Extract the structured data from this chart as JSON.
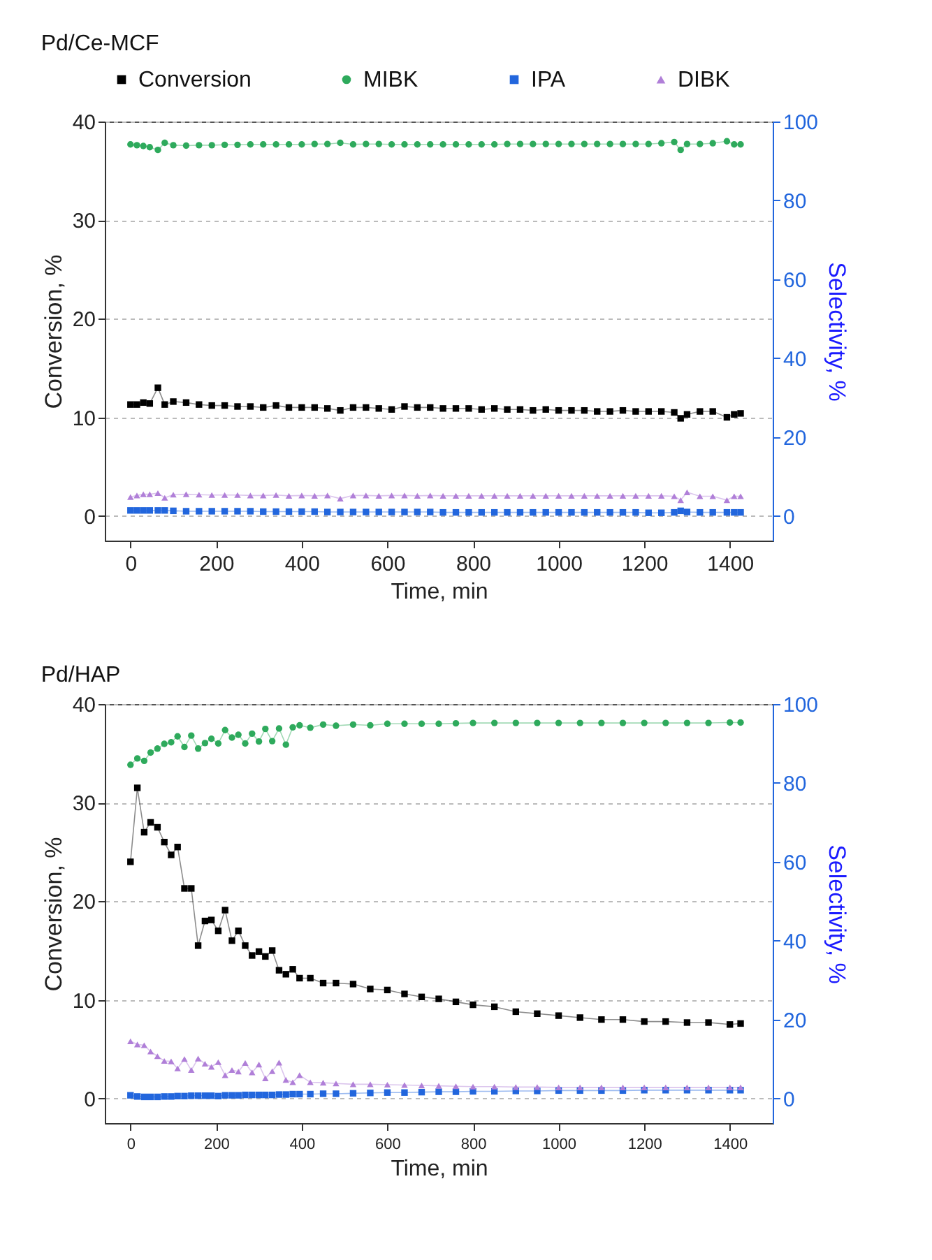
{
  "chart_data": [
    {
      "type": "line",
      "title": "Pd/Ce-MCF",
      "xlabel": "Time, min",
      "ylabel": "Conversion, %",
      "y2label": "Selectivity, %",
      "xlim": [
        -60,
        1500
      ],
      "xticks": [
        0,
        200,
        400,
        600,
        800,
        1000,
        1200,
        1400
      ],
      "ylim": [
        -2.5,
        40
      ],
      "yticks": [
        0,
        10,
        20,
        30,
        40
      ],
      "y2lim": [
        -6.25,
        100
      ],
      "y2ticks": [
        0,
        20,
        40,
        60,
        80,
        100
      ],
      "grid": "y",
      "legend": "top",
      "line_style": "solid",
      "x": [
        0,
        15,
        30,
        45,
        64,
        80,
        100,
        130,
        160,
        190,
        220,
        250,
        280,
        310,
        340,
        370,
        400,
        430,
        460,
        490,
        520,
        550,
        580,
        610,
        640,
        670,
        700,
        730,
        760,
        790,
        820,
        850,
        880,
        910,
        940,
        970,
        1000,
        1030,
        1060,
        1090,
        1120,
        1150,
        1180,
        1210,
        1240,
        1270,
        1285,
        1300,
        1330,
        1360,
        1393,
        1410,
        1425
      ],
      "series": [
        {
          "name": "Conversion",
          "color": "#000000",
          "marker": "square",
          "values": [
            11.3,
            11.3,
            11.5,
            11.4,
            13.0,
            11.3,
            11.6,
            11.5,
            11.3,
            11.2,
            11.2,
            11.1,
            11.1,
            11.0,
            11.2,
            11.0,
            11.0,
            11.0,
            10.9,
            10.7,
            11.0,
            11.0,
            10.9,
            10.8,
            11.1,
            11.0,
            11.0,
            10.9,
            10.9,
            10.9,
            10.8,
            10.9,
            10.8,
            10.8,
            10.7,
            10.8,
            10.7,
            10.7,
            10.7,
            10.6,
            10.6,
            10.7,
            10.6,
            10.6,
            10.6,
            10.5,
            9.9,
            10.3,
            10.6,
            10.6,
            10.0,
            10.3,
            10.4
          ]
        },
        {
          "name": "MIBK",
          "color": "#2eaa5c",
          "marker": "circle",
          "axis": "y2",
          "values": [
            94.2,
            94.0,
            93.8,
            93.5,
            92.8,
            94.6,
            94.0,
            93.9,
            94.0,
            94.0,
            94.1,
            94.1,
            94.2,
            94.2,
            94.2,
            94.2,
            94.2,
            94.3,
            94.3,
            94.6,
            94.2,
            94.3,
            94.3,
            94.2,
            94.2,
            94.2,
            94.2,
            94.2,
            94.2,
            94.2,
            94.2,
            94.2,
            94.3,
            94.3,
            94.3,
            94.3,
            94.3,
            94.3,
            94.3,
            94.3,
            94.3,
            94.3,
            94.3,
            94.3,
            94.5,
            94.8,
            92.8,
            94.3,
            94.3,
            94.5,
            95.0,
            94.2,
            94.2
          ]
        },
        {
          "name": "IPA",
          "color": "#2266dd",
          "marker": "square",
          "axis": "y2",
          "values": [
            1.4,
            1.4,
            1.4,
            1.4,
            1.4,
            1.4,
            1.3,
            1.2,
            1.2,
            1.2,
            1.2,
            1.2,
            1.2,
            1.1,
            1.1,
            1.1,
            1.1,
            1.1,
            1.0,
            1.0,
            1.0,
            1.0,
            1.0,
            1.0,
            1.0,
            1.0,
            1.0,
            0.9,
            0.9,
            0.9,
            0.9,
            0.9,
            0.9,
            0.9,
            0.9,
            0.9,
            0.9,
            0.9,
            0.9,
            0.9,
            0.9,
            0.9,
            0.9,
            0.8,
            0.8,
            0.9,
            1.3,
            1.0,
            0.9,
            0.9,
            0.9,
            0.9,
            0.9
          ]
        },
        {
          "name": "DIBK",
          "color": "#b07fd8",
          "marker": "triangle",
          "axis": "y2",
          "values": [
            4.8,
            5.2,
            5.5,
            5.5,
            5.8,
            4.6,
            5.4,
            5.5,
            5.4,
            5.3,
            5.3,
            5.3,
            5.2,
            5.2,
            5.3,
            5.1,
            5.2,
            5.1,
            5.2,
            4.4,
            5.2,
            5.2,
            5.1,
            5.2,
            5.2,
            5.1,
            5.2,
            5.1,
            5.1,
            5.1,
            5.1,
            5.1,
            5.1,
            5.1,
            5.1,
            5.1,
            5.1,
            5.1,
            5.1,
            5.1,
            5.1,
            5.1,
            5.1,
            5.1,
            5.1,
            5.0,
            4.0,
            6.0,
            5.0,
            5.0,
            4.0,
            5.0,
            5.0
          ]
        }
      ]
    },
    {
      "type": "line",
      "title": "Pd/HAP",
      "xlabel": "Time, min",
      "ylabel": "Conversion, %",
      "y2label": "Selectivity, %",
      "xlim": [
        -60,
        1500
      ],
      "xticks": [
        0,
        200,
        400,
        600,
        800,
        1000,
        1200,
        1400
      ],
      "ylim": [
        -2.5,
        40
      ],
      "yticks": [
        0,
        10,
        20,
        30,
        40
      ],
      "y2lim": [
        -6.25,
        100
      ],
      "y2ticks": [
        0,
        20,
        40,
        60,
        80,
        100
      ],
      "grid": "y",
      "line_style": "solid",
      "x": [
        0,
        16,
        32,
        47,
        63,
        79,
        95,
        110,
        126,
        142,
        158,
        174,
        189,
        205,
        221,
        237,
        252,
        268,
        284,
        300,
        315,
        331,
        347,
        363,
        379,
        395,
        420,
        450,
        480,
        520,
        560,
        600,
        640,
        680,
        720,
        760,
        800,
        850,
        900,
        950,
        1000,
        1050,
        1100,
        1150,
        1200,
        1250,
        1300,
        1350,
        1400,
        1425
      ],
      "series": [
        {
          "color": "#000000",
          "marker": "square",
          "values": [
            24,
            31.5,
            27,
            28,
            27.5,
            26,
            24.7,
            25.5,
            21.3,
            21.3,
            15.5,
            18,
            18.1,
            17,
            19.1,
            16,
            17,
            15.5,
            14.5,
            14.9,
            14.4,
            15,
            13,
            12.6,
            13.1,
            12.2,
            12.2,
            11.7,
            11.7,
            11.6,
            11.1,
            11.0,
            10.6,
            10.3,
            10.1,
            9.8,
            9.5,
            9.3,
            8.8,
            8.6,
            8.4,
            8.2,
            8.0,
            8.0,
            7.8,
            7.8,
            7.7,
            7.7,
            7.5,
            7.6
          ]
        },
        {
          "color": "#2eaa5c",
          "marker": "circle",
          "axis": "y2",
          "values": [
            84.6,
            86.2,
            85.6,
            87.7,
            88.7,
            89.9,
            90.3,
            91.8,
            89.1,
            92.0,
            88.7,
            90.1,
            91.2,
            90.0,
            93.4,
            91.5,
            92.2,
            90.0,
            92.5,
            90.5,
            93.7,
            90.6,
            93.8,
            89.7,
            94.1,
            94.6,
            94.0,
            94.8,
            94.5,
            94.8,
            94.6,
            95.0,
            95.0,
            95.0,
            95.0,
            95.1,
            95.2,
            95.2,
            95.2,
            95.2,
            95.2,
            95.2,
            95.2,
            95.2,
            95.2,
            95.2,
            95.2,
            95.2,
            95.3,
            95.3
          ]
        },
        {
          "color": "#2266dd",
          "marker": "square",
          "axis": "y2",
          "values": [
            0.8,
            0.5,
            0.4,
            0.4,
            0.4,
            0.5,
            0.5,
            0.6,
            0.6,
            0.7,
            0.7,
            0.7,
            0.7,
            0.6,
            0.8,
            0.8,
            0.8,
            0.9,
            0.9,
            0.9,
            0.9,
            0.9,
            1.0,
            1.0,
            1.1,
            1.1,
            1.1,
            1.2,
            1.2,
            1.3,
            1.4,
            1.5,
            1.5,
            1.6,
            1.7,
            1.7,
            1.8,
            1.8,
            1.9,
            1.9,
            2.0,
            2.0,
            2.0,
            2.0,
            2.1,
            2.1,
            2.1,
            2.1,
            2.1,
            2.1
          ]
        },
        {
          "color": "#b07fd8",
          "marker": "triangle",
          "axis": "y2",
          "values": [
            14.5,
            13.7,
            13.5,
            11.9,
            10.7,
            9.5,
            9.4,
            7.6,
            10.0,
            7.2,
            10.1,
            8.8,
            8.0,
            9.2,
            5.9,
            7.2,
            6.8,
            9.0,
            6.6,
            8.6,
            5.1,
            6.9,
            9.1,
            4.7,
            4.1,
            5.9,
            4.1,
            4.0,
            3.8,
            3.6,
            3.6,
            3.5,
            3.4,
            3.3,
            3.2,
            3.1,
            3.0,
            3.0,
            2.9,
            2.9,
            2.8,
            2.8,
            2.8,
            2.8,
            2.8,
            2.8,
            2.8,
            2.8,
            2.8,
            2.8
          ]
        }
      ]
    }
  ]
}
